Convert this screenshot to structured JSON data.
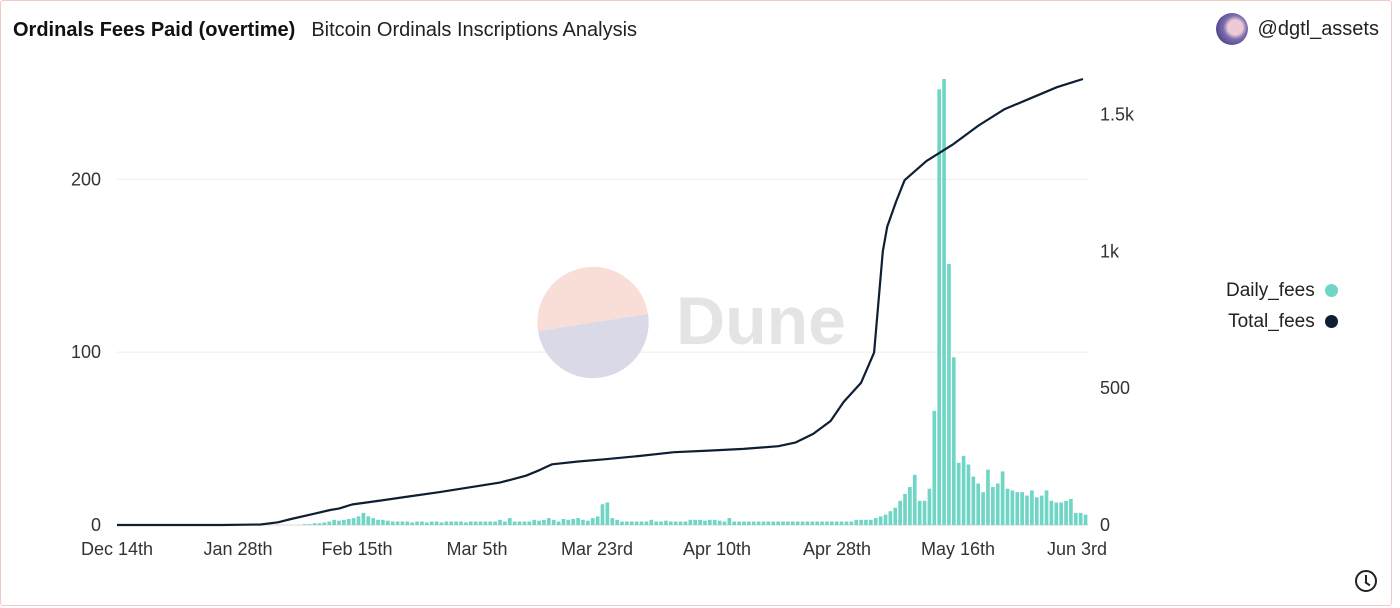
{
  "header": {
    "title": "Ordinals Fees Paid (overtime)",
    "subtitle": "Bitcoin Ordinals Inscriptions Analysis"
  },
  "author": {
    "handle": "@dgtl_assets",
    "avatar_icon": "avatar-icon"
  },
  "watermark": {
    "text": "Dune"
  },
  "legend": [
    {
      "label": "Daily_fees",
      "color": "#6fd6c6"
    },
    {
      "label": "Total_fees",
      "color": "#0e1f33"
    }
  ],
  "chart_data": {
    "type": "bar+line",
    "x_tick_labels": [
      "Dec 14th",
      "Jan 28th",
      "Feb 15th",
      "Mar 5th",
      "Mar 23rd",
      "Apr 10th",
      "Apr 28th",
      "May 16th",
      "Jun 3rd"
    ],
    "y_left": {
      "ticks": [
        "0",
        "100",
        "200"
      ],
      "range": [
        0,
        265
      ]
    },
    "y_right": {
      "ticks": [
        "0",
        "500",
        "1k",
        "1.5k"
      ],
      "range": [
        0,
        1630
      ]
    },
    "grid": true,
    "legend_position": "right",
    "series": [
      {
        "name": "Daily_fees",
        "type": "bar",
        "axis": "left",
        "color": "#6fd6c6",
        "values": [
          0,
          0,
          0,
          0,
          0,
          0,
          0,
          0,
          0,
          0,
          0,
          0,
          0,
          0,
          0,
          0,
          0,
          0,
          0,
          0,
          0,
          0,
          0,
          0,
          0,
          0,
          0,
          0,
          0,
          0,
          0,
          0,
          0,
          0,
          0,
          0,
          0,
          0,
          0.5,
          0.5,
          1,
          1,
          1.5,
          2,
          3,
          2.5,
          3,
          3.5,
          4,
          5,
          7,
          5,
          4,
          3,
          3,
          2.5,
          2,
          2,
          2,
          2,
          1.5,
          2,
          2,
          1.5,
          2,
          2,
          1.5,
          2,
          2,
          2,
          2,
          1.5,
          2,
          2,
          2,
          2,
          2,
          2,
          3,
          2,
          4,
          2,
          2,
          2,
          2,
          3,
          2.5,
          3,
          4,
          3,
          2,
          3.5,
          3,
          3.5,
          4,
          3,
          2.5,
          4,
          5,
          12,
          13,
          4,
          3,
          2,
          2,
          2,
          2,
          2,
          2,
          3,
          2,
          2,
          2.5,
          2,
          2,
          2,
          2,
          3,
          3,
          3,
          2.5,
          3,
          3,
          2.5,
          2,
          4,
          2,
          2,
          2,
          2,
          2,
          2,
          2,
          2,
          2,
          2,
          2,
          2,
          2,
          2,
          2,
          2,
          2,
          2,
          2,
          2,
          2,
          2,
          2,
          2,
          2,
          3,
          3,
          3,
          3,
          4,
          5,
          6,
          8,
          10,
          14,
          18,
          22,
          29,
          14,
          14,
          21,
          66,
          252,
          258,
          151,
          97,
          36,
          40,
          35,
          28,
          24,
          19,
          32,
          22,
          24,
          31,
          21,
          20,
          19,
          19,
          17,
          20,
          16,
          17,
          20,
          14,
          13,
          13,
          14,
          15,
          7,
          7,
          6
        ],
        "value_note": "approximate per-day values read from bar heights"
      },
      {
        "name": "Total_fees",
        "type": "line",
        "axis": "right",
        "color": "#0e1f33",
        "points": [
          [
            0,
            0
          ],
          [
            120,
            0
          ],
          [
            165,
            2
          ],
          [
            185,
            10
          ],
          [
            200,
            22
          ],
          [
            225,
            40
          ],
          [
            245,
            55
          ],
          [
            255,
            60
          ],
          [
            270,
            75
          ],
          [
            300,
            88
          ],
          [
            330,
            102
          ],
          [
            370,
            120
          ],
          [
            400,
            135
          ],
          [
            440,
            155
          ],
          [
            470,
            180
          ],
          [
            485,
            200
          ],
          [
            500,
            222
          ],
          [
            530,
            232
          ],
          [
            560,
            240
          ],
          [
            600,
            252
          ],
          [
            640,
            266
          ],
          [
            680,
            272
          ],
          [
            720,
            278
          ],
          [
            760,
            288
          ],
          [
            780,
            302
          ],
          [
            800,
            333
          ],
          [
            820,
            380
          ],
          [
            835,
            450
          ],
          [
            855,
            520
          ],
          [
            870,
            630
          ],
          [
            880,
            1000
          ],
          [
            885,
            1090
          ],
          [
            895,
            1180
          ],
          [
            905,
            1260
          ],
          [
            930,
            1330
          ],
          [
            960,
            1390
          ],
          [
            990,
            1460
          ],
          [
            1020,
            1520
          ],
          [
            1050,
            1560
          ],
          [
            1080,
            1600
          ],
          [
            1100,
            1620
          ],
          [
            1110,
            1630
          ]
        ],
        "value_note": "cumulative total; points are [x offset along time axis 0..1110 as fraction proxy, value]"
      }
    ]
  }
}
